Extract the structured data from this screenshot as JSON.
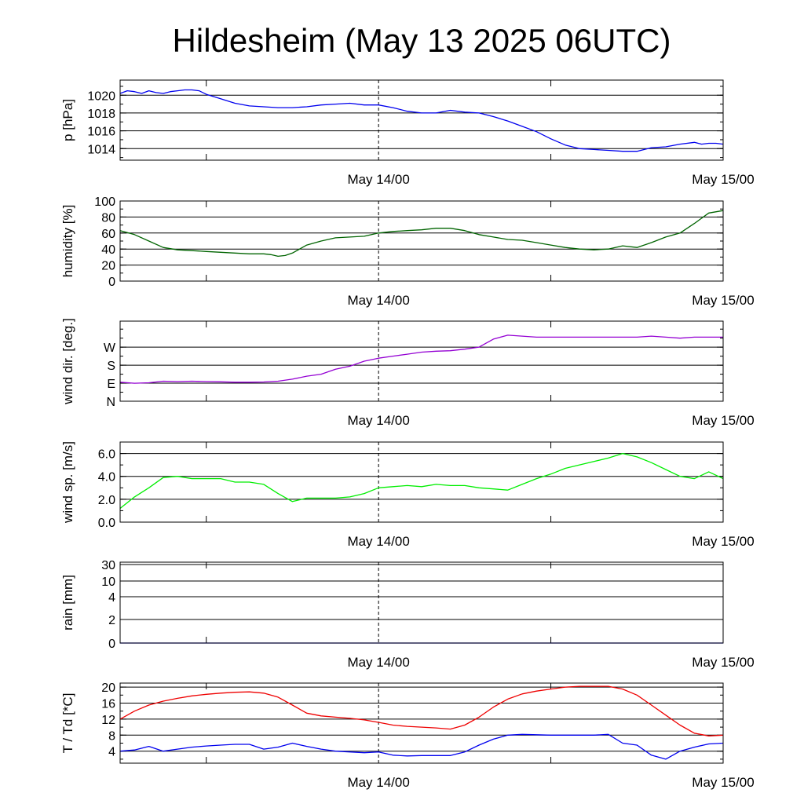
{
  "title": "Hildesheim (May 13 2025 06UTC)",
  "chart_data": [
    {
      "type": "line",
      "ylabel": "p [hPa]",
      "ylim": [
        1012.7,
        1021.7
      ],
      "yticks": [
        1014,
        1016,
        1018,
        1020
      ],
      "ytick_labels": [
        "1014",
        "1016",
        "1018",
        "1020"
      ],
      "xlim": [
        0,
        42
      ],
      "xtick_labels": [
        {
          "x": 18,
          "label": "May 14/00"
        },
        {
          "x": 42,
          "label": "May 15/00"
        }
      ],
      "minor_xticks": [
        6,
        30
      ],
      "midnight_marker": 18,
      "grid": true,
      "series": [
        {
          "color": "#0000ee",
          "x": [
            0,
            0.5,
            1,
            1.5,
            2,
            2.5,
            3,
            3.5,
            4,
            4.5,
            5,
            5.5,
            6,
            7,
            8,
            9,
            10,
            11,
            12,
            13,
            14,
            15,
            16,
            17,
            18,
            19,
            20,
            21,
            22,
            23,
            24,
            25,
            26,
            27,
            28,
            29,
            30,
            31,
            32,
            33,
            34,
            35,
            36,
            37,
            38,
            39,
            40,
            40.5,
            41,
            41.5,
            42
          ],
          "y": [
            1020.2,
            1020.5,
            1020.4,
            1020.2,
            1020.5,
            1020.3,
            1020.2,
            1020.4,
            1020.5,
            1020.6,
            1020.6,
            1020.5,
            1020.1,
            1019.6,
            1019.1,
            1018.8,
            1018.7,
            1018.6,
            1018.6,
            1018.7,
            1018.9,
            1019.0,
            1019.1,
            1018.9,
            1018.9,
            1018.6,
            1018.2,
            1018.0,
            1018.0,
            1018.3,
            1018.1,
            1018.0,
            1017.6,
            1017.1,
            1016.5,
            1015.9,
            1015.1,
            1014.4,
            1014.0,
            1013.9,
            1013.8,
            1013.7,
            1013.7,
            1014.1,
            1014.2,
            1014.5,
            1014.7,
            1014.5,
            1014.6,
            1014.6,
            1014.5
          ]
        }
      ]
    },
    {
      "type": "line",
      "ylabel": "humidity [%]",
      "ylim": [
        0,
        100
      ],
      "yticks": [
        0,
        20,
        40,
        60,
        80,
        100
      ],
      "ytick_labels": [
        "0",
        "20",
        "40",
        "60",
        "80",
        "100"
      ],
      "xlim": [
        0,
        42
      ],
      "xtick_labels": [
        {
          "x": 18,
          "label": "May 14/00"
        },
        {
          "x": 42,
          "label": "May 15/00"
        }
      ],
      "minor_xticks": [
        6,
        30
      ],
      "midnight_marker": 18,
      "grid": true,
      "series": [
        {
          "color": "#006400",
          "x": [
            0,
            1,
            2,
            3,
            4,
            5,
            6,
            7,
            8,
            9,
            9.5,
            10,
            10.5,
            11,
            11.5,
            12,
            13,
            14,
            15,
            16,
            17,
            18,
            19,
            20,
            21,
            22,
            23,
            24,
            25,
            26,
            27,
            28,
            29,
            30,
            31,
            32,
            33,
            34,
            35,
            36,
            37,
            38,
            39,
            40,
            41,
            42
          ],
          "y": [
            63,
            58,
            50,
            42,
            39,
            38,
            37,
            36,
            35,
            34,
            34,
            34,
            33,
            31,
            32,
            35,
            45,
            50,
            54,
            55,
            56,
            60,
            62,
            63,
            64,
            66,
            66,
            63,
            58,
            55,
            52,
            51,
            48,
            45,
            42,
            40,
            39,
            40,
            44,
            42,
            48,
            55,
            60,
            72,
            85,
            88
          ]
        }
      ]
    },
    {
      "type": "line",
      "ylabel": "wind dir. [deg.]",
      "ylim": [
        0,
        400
      ],
      "yticks": [
        0,
        90,
        180,
        270
      ],
      "ytick_labels": [
        "N",
        "E",
        "S",
        "W"
      ],
      "xlim": [
        0,
        42
      ],
      "xtick_labels": [
        {
          "x": 18,
          "label": "May 14/00"
        },
        {
          "x": 42,
          "label": "May 15/00"
        }
      ],
      "minor_xticks": [
        6,
        30
      ],
      "midnight_marker": 18,
      "grid": true,
      "series": [
        {
          "color": "#9400d3",
          "x": [
            0,
            1,
            2,
            3,
            4,
            5,
            6,
            7,
            8,
            9,
            10,
            11,
            12,
            13,
            14,
            15,
            16,
            17,
            18,
            19,
            20,
            21,
            22,
            23,
            24,
            25,
            26,
            27,
            28,
            29,
            30,
            31,
            32,
            33,
            34,
            35,
            36,
            37,
            38,
            39,
            40,
            41,
            42
          ],
          "y": [
            95,
            90,
            92,
            100,
            98,
            100,
            98,
            97,
            95,
            95,
            96,
            100,
            110,
            125,
            135,
            160,
            175,
            200,
            215,
            225,
            235,
            245,
            250,
            252,
            260,
            270,
            310,
            330,
            325,
            320,
            320,
            320,
            320,
            320,
            320,
            320,
            320,
            325,
            320,
            315,
            320,
            320,
            320
          ]
        }
      ]
    },
    {
      "type": "line",
      "ylabel": "wind sp. [m/s]",
      "ylim": [
        0,
        7
      ],
      "yticks": [
        0,
        2,
        4,
        6
      ],
      "ytick_labels": [
        "0.0",
        "2.0",
        "4.0",
        "6.0"
      ],
      "xlim": [
        0,
        42
      ],
      "xtick_labels": [
        {
          "x": 18,
          "label": "May 14/00"
        },
        {
          "x": 42,
          "label": "May 15/00"
        }
      ],
      "minor_xticks": [
        6,
        30
      ],
      "midnight_marker": 18,
      "grid": true,
      "series": [
        {
          "color": "#00ee00",
          "x": [
            0,
            1,
            2,
            3,
            4,
            5,
            6,
            7,
            8,
            9,
            10,
            11,
            12,
            13,
            14,
            15,
            16,
            17,
            18,
            19,
            20,
            21,
            22,
            23,
            24,
            25,
            26,
            27,
            28,
            29,
            30,
            31,
            32,
            33,
            34,
            35,
            36,
            37,
            38,
            39,
            40,
            41,
            42
          ],
          "y": [
            1.2,
            2.2,
            3.0,
            3.9,
            4.0,
            3.8,
            3.8,
            3.8,
            3.5,
            3.5,
            3.3,
            2.5,
            1.8,
            2.1,
            2.1,
            2.1,
            2.2,
            2.5,
            3.0,
            3.1,
            3.2,
            3.1,
            3.3,
            3.2,
            3.2,
            3.0,
            2.9,
            2.8,
            3.3,
            3.8,
            4.2,
            4.7,
            5.0,
            5.3,
            5.6,
            6.0,
            5.7,
            5.2,
            4.6,
            4.0,
            3.8,
            4.4,
            3.8
          ]
        }
      ]
    },
    {
      "type": "line",
      "ylabel": "rain [mm]",
      "ylim": [
        0,
        30
      ],
      "ytick_values_shown": [
        0,
        2,
        4,
        10,
        30
      ],
      "ytick_labels": [
        "0",
        "2",
        "4",
        "10",
        "30"
      ],
      "scale": "nonlinear",
      "xlim": [
        0,
        42
      ],
      "xtick_labels": [
        {
          "x": 18,
          "label": "May 14/00"
        },
        {
          "x": 42,
          "label": "May 15/00"
        }
      ],
      "minor_xticks": [
        6,
        30
      ],
      "midnight_marker": 18,
      "grid": true,
      "series": [
        {
          "color": "#0000ee",
          "x": [
            0,
            42
          ],
          "y": [
            0,
            0
          ]
        }
      ]
    },
    {
      "type": "line",
      "ylabel": "T / Td [*C]",
      "ylim": [
        1,
        21
      ],
      "yticks": [
        4,
        8,
        12,
        16,
        20
      ],
      "ytick_labels": [
        "4",
        "8",
        "12",
        "16",
        "20"
      ],
      "xlim": [
        0,
        42
      ],
      "xtick_labels": [
        {
          "x": 18,
          "label": "May 14/00"
        },
        {
          "x": 42,
          "label": "May 15/00"
        }
      ],
      "minor_xticks": [
        6,
        30
      ],
      "midnight_marker": 18,
      "grid": true,
      "series": [
        {
          "color": "#ee0000",
          "x": [
            0,
            1,
            2,
            3,
            4,
            5,
            6,
            7,
            8,
            9,
            10,
            11,
            12,
            13,
            14,
            15,
            16,
            17,
            18,
            19,
            20,
            21,
            22,
            23,
            24,
            25,
            26,
            27,
            28,
            29,
            30,
            31,
            32,
            33,
            34,
            35,
            36,
            37,
            38,
            39,
            40,
            41,
            42
          ],
          "y": [
            12,
            14,
            15.5,
            16.5,
            17.2,
            17.8,
            18.2,
            18.5,
            18.7,
            18.8,
            18.5,
            17.5,
            15.5,
            13.5,
            12.8,
            12.5,
            12.2,
            11.8,
            11.2,
            10.5,
            10.2,
            10,
            9.8,
            9.5,
            10.5,
            12.5,
            15,
            17,
            18.3,
            19,
            19.5,
            20,
            20.2,
            20.2,
            20.2,
            19.5,
            18,
            15.5,
            13,
            10.5,
            8.5,
            7.8,
            8
          ]
        },
        {
          "color": "#0000ee",
          "x": [
            0,
            1,
            2,
            3,
            4,
            5,
            6,
            7,
            8,
            9,
            10,
            11,
            12,
            13,
            14,
            15,
            16,
            17,
            18,
            19,
            20,
            21,
            22,
            23,
            24,
            25,
            26,
            27,
            28,
            29,
            30,
            31,
            32,
            33,
            34,
            35,
            36,
            37,
            38,
            39,
            40,
            41,
            42
          ],
          "y": [
            4,
            4.3,
            5.2,
            4,
            4.5,
            5,
            5.3,
            5.5,
            5.7,
            5.7,
            4.5,
            5,
            6,
            5.2,
            4.5,
            4,
            3.8,
            3.6,
            3.8,
            3,
            2.8,
            2.9,
            2.9,
            2.9,
            3.8,
            5.5,
            7,
            8,
            8.2,
            8.1,
            8,
            8,
            8,
            8,
            8.2,
            6,
            5.5,
            3,
            2,
            4,
            5,
            5.8,
            6
          ]
        }
      ]
    }
  ],
  "icons": [
    "none"
  ]
}
